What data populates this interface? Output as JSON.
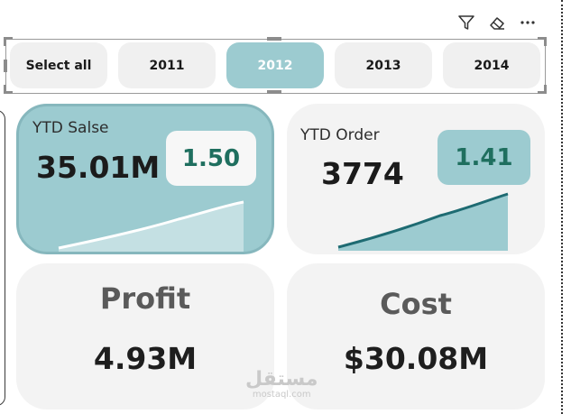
{
  "header_icons": [
    "filter-icon",
    "eraser-icon",
    "more-options-icon"
  ],
  "slicer": {
    "options": [
      "Select all",
      "2011",
      "2012",
      "2013",
      "2014"
    ],
    "selected": "2012"
  },
  "cards": {
    "ytd_sales": {
      "title": "YTD Salse",
      "value": "35.01M",
      "badge": "1.50"
    },
    "ytd_order": {
      "title": "YTD Order",
      "value": "3774",
      "badge": "1.41"
    },
    "profit": {
      "label": "Profit",
      "value": "4.93M"
    },
    "cost": {
      "label": "Cost",
      "value": "$30.08M"
    }
  },
  "watermark": {
    "arabic": "مستقل",
    "latin": "mostaql.com"
  },
  "colors": {
    "accent": "#9ccbd0",
    "card_bg": "#f3f3f3",
    "badge_text": "#1f6f5f",
    "sparkline_dark": "#1e6b72"
  }
}
